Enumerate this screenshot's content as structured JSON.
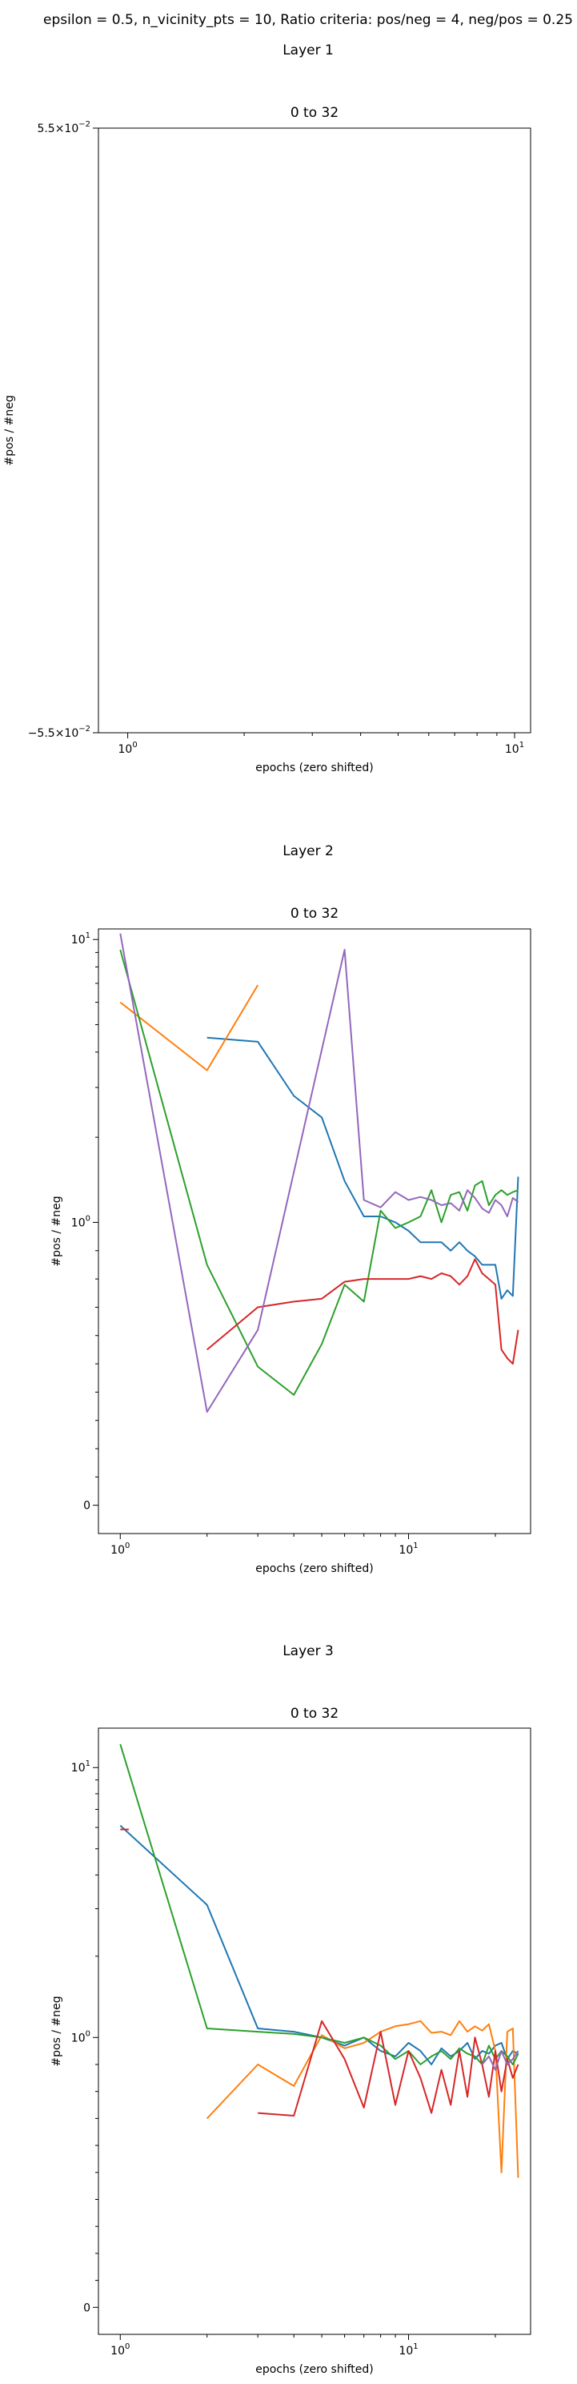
{
  "figure": {
    "suptitle": "epsilon = 0.5, n_vicinity_pts = 10, Ratio criteria: pos/neg = 4, neg/pos = 0.25"
  },
  "colors": {
    "s1": "#1f77b4",
    "s2": "#ff7f0e",
    "s3": "#2ca02c",
    "s4": "#d62728",
    "s5": "#9467bd"
  },
  "chart_data": [
    {
      "type": "line",
      "section_title": "Layer 1",
      "title": "0 to 32",
      "xlabel": "epochs (zero shifted)",
      "ylabel": "#pos / #neg",
      "xscale": "log",
      "xlim": [
        0.84,
        11.0
      ],
      "ylim": [
        -0.055,
        0.055
      ],
      "xticks": [
        {
          "v": 1,
          "label": "10^0"
        },
        {
          "v": 10,
          "label": "10^1"
        }
      ],
      "yticks": [
        {
          "v": 0.055,
          "label": "5.5×10^−2"
        },
        {
          "v": -0.055,
          "label": "−5.5×10^−2"
        }
      ],
      "series": []
    },
    {
      "type": "line",
      "section_title": "Layer 2",
      "title": "0 to 32",
      "xlabel": "epochs (zero shifted)",
      "ylabel": "#pos / #neg",
      "xscale": "log",
      "yscale": "symlog",
      "xlim": [
        0.84,
        26.5
      ],
      "ylim": [
        -0.1,
        10.9
      ],
      "xticks": [
        {
          "v": 1,
          "label": "10^0"
        },
        {
          "v": 10,
          "label": "10^1"
        }
      ],
      "yticks": [
        {
          "v": 10,
          "label": "10^1"
        },
        {
          "v": 1,
          "label": "10^0"
        },
        {
          "v": 0,
          "label": "0"
        }
      ],
      "series": [
        {
          "color": "s1",
          "x": [
            2,
            3,
            4,
            5,
            6,
            7,
            8,
            9,
            10,
            11,
            12,
            13,
            14,
            15,
            16,
            17,
            18,
            19,
            20,
            21,
            22,
            23,
            24
          ],
          "y": [
            4.5,
            4.35,
            2.8,
            2.35,
            1.4,
            1.05,
            1.05,
            1.0,
            0.97,
            0.93,
            0.93,
            0.93,
            0.9,
            0.93,
            0.9,
            0.88,
            0.85,
            0.85,
            0.85,
            0.73,
            0.76,
            0.74,
            1.45
          ]
        },
        {
          "color": "s2",
          "x": [
            1,
            2,
            3
          ],
          "y": [
            6.0,
            3.45,
            6.9
          ]
        },
        {
          "color": "s3",
          "x": [
            1,
            2,
            3,
            4,
            5,
            6,
            7,
            8,
            9,
            10,
            11,
            12,
            13,
            14,
            15,
            16,
            17,
            18,
            19,
            20,
            21,
            22,
            23,
            24
          ],
          "y": [
            9.2,
            0.85,
            0.49,
            0.39,
            0.57,
            0.78,
            0.72,
            1.1,
            0.98,
            1.0,
            1.05,
            1.3,
            1.0,
            1.25,
            1.28,
            1.1,
            1.35,
            1.4,
            1.15,
            1.25,
            1.3,
            1.25,
            1.28,
            1.3
          ]
        },
        {
          "color": "s4",
          "x": [
            2,
            3,
            4,
            5,
            6,
            7,
            8,
            9,
            10,
            11,
            12,
            13,
            14,
            15,
            16,
            17,
            18,
            19,
            20,
            21,
            22,
            23,
            24
          ],
          "y": [
            0.55,
            0.7,
            0.72,
            0.73,
            0.79,
            0.8,
            0.8,
            0.8,
            0.8,
            0.81,
            0.8,
            0.82,
            0.81,
            0.78,
            0.81,
            0.87,
            0.82,
            0.8,
            0.78,
            0.55,
            0.52,
            0.5,
            0.62
          ]
        },
        {
          "color": "s5",
          "x": [
            1,
            2,
            3,
            6,
            7,
            8,
            9,
            10,
            11,
            12,
            13,
            14,
            15,
            16,
            17,
            18,
            19,
            20,
            21,
            22,
            23,
            24
          ],
          "y": [
            10.5,
            0.33,
            0.62,
            9.2,
            1.2,
            1.13,
            1.28,
            1.2,
            1.23,
            1.2,
            1.15,
            1.17,
            1.1,
            1.3,
            1.22,
            1.12,
            1.08,
            1.2,
            1.15,
            1.05,
            1.22,
            1.18
          ]
        }
      ]
    },
    {
      "type": "line",
      "section_title": "Layer 3",
      "title": "0 to 32",
      "xlabel": "epochs (zero shifted)",
      "ylabel": "#pos / #neg",
      "xscale": "log",
      "yscale": "symlog",
      "xlim": [
        0.84,
        26.5
      ],
      "ylim": [
        -0.1,
        14.0
      ],
      "xticks": [
        {
          "v": 1,
          "label": "10^0"
        },
        {
          "v": 10,
          "label": "10^1"
        }
      ],
      "yticks": [
        {
          "v": 10,
          "label": "10^1"
        },
        {
          "v": 1,
          "label": "10^0"
        },
        {
          "v": 0,
          "label": "0"
        }
      ],
      "series": [
        {
          "color": "s1",
          "x": [
            1,
            2,
            3,
            4,
            5,
            6,
            7,
            8,
            9,
            10,
            11,
            12,
            13,
            14,
            15,
            16,
            17,
            18,
            19,
            20,
            21,
            22,
            23,
            24
          ],
          "y": [
            6.1,
            3.1,
            1.08,
            1.05,
            1.0,
            0.97,
            1.0,
            0.95,
            0.93,
            0.98,
            0.95,
            0.9,
            0.96,
            0.93,
            0.95,
            0.98,
            0.92,
            0.95,
            0.94,
            0.97,
            0.98,
            0.92,
            0.95,
            0.94
          ]
        },
        {
          "color": "s2",
          "x": [
            2,
            3,
            4,
            5,
            6,
            7,
            8,
            9,
            10,
            11,
            12,
            13,
            14,
            15,
            16,
            17,
            18,
            19,
            20,
            21,
            22,
            23,
            24
          ],
          "y": [
            0.7,
            0.9,
            0.82,
            1.02,
            0.96,
            0.98,
            1.05,
            1.1,
            1.12,
            1.15,
            1.04,
            1.05,
            1.02,
            1.15,
            1.05,
            1.1,
            1.06,
            1.12,
            0.95,
            0.5,
            1.05,
            1.08,
            0.48
          ]
        },
        {
          "color": "s3",
          "x": [
            1,
            2,
            3,
            4,
            5,
            6,
            7,
            8,
            9,
            10,
            11,
            12,
            13,
            14,
            15,
            16,
            17,
            18,
            19,
            20,
            21,
            22,
            23,
            24
          ],
          "y": [
            12.2,
            1.08,
            1.05,
            1.03,
            1.0,
            0.98,
            1.0,
            0.97,
            0.92,
            0.95,
            0.9,
            0.93,
            0.95,
            0.92,
            0.96,
            0.94,
            0.93,
            0.9,
            0.97,
            0.92,
            0.95,
            0.93,
            0.9,
            0.94
          ]
        },
        {
          "color": "s4",
          "x": [
            3,
            4,
            5,
            6,
            7,
            8,
            9,
            10,
            11,
            12,
            13,
            14,
            15,
            16,
            17,
            18,
            19,
            20,
            21,
            22,
            23,
            24
          ],
          "y": [
            0.72,
            0.71,
            1.15,
            0.92,
            0.74,
            1.05,
            0.75,
            0.95,
            0.85,
            0.72,
            0.88,
            0.75,
            0.95,
            0.78,
            1.0,
            0.9,
            0.78,
            0.95,
            0.8,
            0.92,
            0.85,
            0.9
          ]
        },
        {
          "color": "s5",
          "x": [
            18,
            19,
            20,
            21,
            22,
            23,
            24
          ],
          "y": [
            0.9,
            0.93,
            0.88,
            0.95,
            0.9,
            0.92,
            0.95
          ]
        },
        {
          "color": "s4",
          "x": [
            1,
            1.07
          ],
          "y": [
            5.9,
            5.9
          ]
        }
      ]
    }
  ]
}
